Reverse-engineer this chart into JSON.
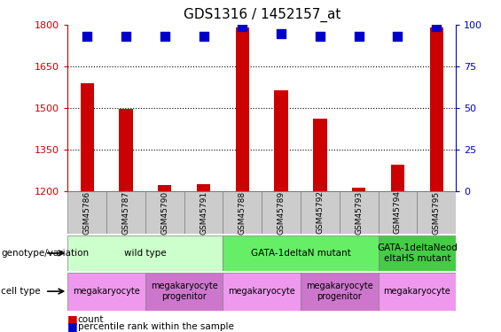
{
  "title": "GDS1316 / 1452157_at",
  "samples": [
    "GSM45786",
    "GSM45787",
    "GSM45790",
    "GSM45791",
    "GSM45788",
    "GSM45789",
    "GSM45792",
    "GSM45793",
    "GSM45794",
    "GSM45795"
  ],
  "counts": [
    1590,
    1495,
    1222,
    1225,
    1790,
    1565,
    1460,
    1212,
    1295,
    1790
  ],
  "percentiles": [
    93,
    93,
    93,
    93,
    99,
    95,
    93,
    93,
    93,
    99
  ],
  "ylim_left": [
    1200,
    1800
  ],
  "ylim_right": [
    0,
    100
  ],
  "yticks_left": [
    1200,
    1350,
    1500,
    1650,
    1800
  ],
  "yticks_right": [
    0,
    25,
    50,
    75,
    100
  ],
  "bar_color": "#cc0000",
  "dot_color": "#0000cc",
  "bar_width": 0.35,
  "dot_size": 55,
  "genotype_groups": [
    {
      "label": "wild type",
      "start": 0,
      "end": 4,
      "color": "#ccffcc"
    },
    {
      "label": "GATA-1deltaN mutant",
      "start": 4,
      "end": 8,
      "color": "#66ee66"
    },
    {
      "label": "GATA-1deltaNeod\neltaHS mutant",
      "start": 8,
      "end": 10,
      "color": "#44cc44"
    }
  ],
  "cell_type_groups": [
    {
      "label": "megakaryocyte",
      "start": 0,
      "end": 2,
      "color": "#ee99ee"
    },
    {
      "label": "megakaryocyte\nprogenitor",
      "start": 2,
      "end": 4,
      "color": "#cc77cc"
    },
    {
      "label": "megakaryocyte",
      "start": 4,
      "end": 6,
      "color": "#ee99ee"
    },
    {
      "label": "megakaryocyte\nprogenitor",
      "start": 6,
      "end": 8,
      "color": "#cc77cc"
    },
    {
      "label": "megakaryocyte",
      "start": 8,
      "end": 10,
      "color": "#ee99ee"
    }
  ],
  "left_axis_color": "#cc0000",
  "right_axis_color": "#0000cc",
  "sample_bg_color": "#cccccc",
  "legend_count_color": "#cc0000",
  "legend_pct_color": "#0000cc"
}
